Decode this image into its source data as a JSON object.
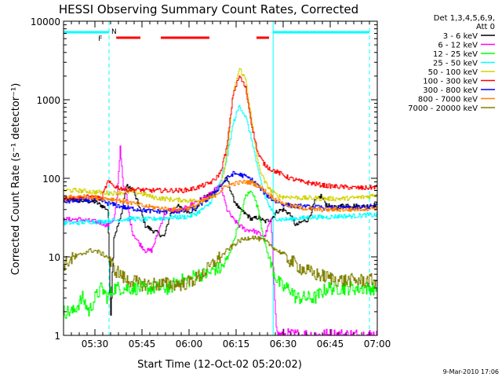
{
  "chart_data": {
    "type": "line",
    "title": "HESSI Observing Summary Count Rates, Corrected",
    "xlabel": "Start Time (12-Oct-02 05:20:02)",
    "ylabel": "Corrected Count Rate (s⁻¹ detector⁻¹)",
    "x_unit": "minutes since 05:20:02",
    "xlim": [
      0,
      100
    ],
    "ylim": [
      1,
      10000
    ],
    "yscale": "log",
    "x_ticks": [
      {
        "label": "05:30",
        "value": 10
      },
      {
        "label": "05:45",
        "value": 25
      },
      {
        "label": "06:00",
        "value": 40
      },
      {
        "label": "06:15",
        "value": 55
      },
      {
        "label": "06:30",
        "value": 70
      },
      {
        "label": "06:45",
        "value": 85
      },
      {
        "label": "07:00",
        "value": 100
      }
    ],
    "y_ticks": [
      {
        "label": "1",
        "value": 1
      },
      {
        "label": "10",
        "value": 10
      },
      {
        "label": "100",
        "value": 100
      },
      {
        "label": "1000",
        "value": 1000
      },
      {
        "label": "10000",
        "value": 10000
      }
    ],
    "legend": {
      "header": [
        "Det 1,3,4,5,6,9,",
        "Att 0"
      ],
      "placement": "right"
    },
    "flags": {
      "F_label": "F",
      "N_label": "N",
      "night_color": "#00ffff",
      "flare_color": "#ff0000",
      "night_segments": [
        [
          0,
          14.5
        ],
        [
          66.8,
          97.5
        ]
      ],
      "flare_segments": [
        [
          16.8,
          24.5
        ],
        [
          31,
          46.5
        ],
        [
          61.5,
          65.5
        ]
      ],
      "dashed_lines": [
        14.5,
        97.5
      ],
      "solid_lines": [
        0,
        66.8
      ]
    },
    "series": [
      {
        "name": "3 - 6 keV",
        "color": "#000000",
        "x": [
          0,
          5,
          10,
          12,
          14,
          15,
          16,
          18,
          20,
          22,
          24,
          26,
          28,
          30,
          32,
          34,
          36,
          38,
          40,
          42,
          44,
          46,
          48,
          50,
          52,
          54,
          56,
          58,
          60,
          62,
          64,
          66,
          68,
          70,
          72,
          74,
          76,
          78,
          80,
          82,
          84,
          86,
          88,
          90,
          92,
          94,
          96,
          98,
          100
        ],
        "y": [
          55,
          52,
          50,
          45,
          40,
          2,
          18,
          30,
          80,
          70,
          45,
          25,
          22,
          20,
          18,
          35,
          45,
          40,
          38,
          40,
          55,
          60,
          70,
          80,
          100,
          55,
          40,
          35,
          30,
          32,
          28,
          30,
          38,
          40,
          35,
          25,
          28,
          30,
          50,
          60,
          45,
          42,
          44,
          46,
          45,
          44,
          44,
          45,
          46
        ]
      },
      {
        "name": "6 - 12 keV",
        "color": "#ff00ff",
        "x": [
          0,
          5,
          10,
          12,
          14,
          15,
          16,
          17,
          18,
          19,
          20,
          21,
          22,
          24,
          26,
          28,
          30,
          32,
          34,
          36,
          38,
          40,
          42,
          44,
          46,
          48,
          50,
          52,
          54,
          56,
          58,
          60,
          62,
          64,
          66,
          67,
          68,
          70,
          72,
          74,
          76,
          78,
          80,
          85,
          90,
          95,
          100
        ],
        "y": [
          30,
          30,
          28,
          27,
          25,
          28,
          30,
          55,
          250,
          80,
          60,
          30,
          20,
          15,
          12,
          12,
          20,
          35,
          40,
          38,
          40,
          45,
          50,
          55,
          60,
          70,
          80,
          40,
          30,
          25,
          22,
          22,
          20,
          18,
          30,
          5,
          1,
          1,
          1,
          1,
          1,
          1,
          1,
          1,
          1,
          1,
          1
        ]
      },
      {
        "name": "12 - 25 keV",
        "color": "#00ff00",
        "x": [
          0,
          3,
          6,
          8,
          10,
          12,
          14,
          16,
          20,
          24,
          28,
          30,
          32,
          34,
          36,
          38,
          40,
          42,
          44,
          46,
          48,
          50,
          52,
          54,
          56,
          58,
          60,
          62,
          64,
          66,
          68,
          70,
          72,
          74,
          76,
          78,
          80,
          84,
          88,
          92,
          96,
          100
        ],
        "y": [
          2,
          2,
          3,
          2,
          3,
          4,
          3,
          4,
          4,
          4,
          4,
          4,
          4,
          4,
          5,
          5,
          5,
          6,
          6,
          6,
          7,
          7,
          9,
          15,
          30,
          60,
          70,
          40,
          15,
          8,
          5,
          4,
          4,
          3,
          3,
          3,
          3,
          4,
          4,
          4,
          4,
          4
        ]
      },
      {
        "name": "25 - 50 keV",
        "color": "#00ffff",
        "x": [
          0,
          4,
          8,
          12,
          14,
          16,
          18,
          20,
          22,
          24,
          26,
          28,
          30,
          32,
          34,
          36,
          38,
          40,
          42,
          44,
          46,
          48,
          50,
          52,
          54,
          56,
          58,
          60,
          62,
          64,
          66,
          68,
          70,
          72,
          74,
          76,
          78,
          80,
          84,
          88,
          92,
          96,
          100
        ],
        "y": [
          27,
          27,
          28,
          28,
          29,
          29,
          30,
          30,
          31,
          30,
          30,
          30,
          31,
          31,
          32,
          32,
          32,
          33,
          35,
          40,
          45,
          60,
          90,
          180,
          500,
          850,
          600,
          300,
          120,
          60,
          40,
          30,
          30,
          30,
          31,
          31,
          32,
          32,
          32,
          33,
          33,
          34,
          34
        ]
      },
      {
        "name": "50 - 100 keV",
        "color": "#d2d200",
        "x": [
          0,
          4,
          8,
          12,
          14,
          16,
          18,
          20,
          22,
          24,
          26,
          28,
          30,
          32,
          34,
          36,
          38,
          40,
          42,
          44,
          46,
          48,
          50,
          52,
          54,
          56,
          58,
          60,
          62,
          64,
          66,
          68,
          70,
          72,
          74,
          76,
          78,
          80,
          84,
          88,
          92,
          96,
          100
        ],
        "y": [
          70,
          70,
          68,
          66,
          65,
          65,
          66,
          66,
          68,
          65,
          62,
          58,
          56,
          55,
          54,
          53,
          53,
          52,
          52,
          54,
          56,
          60,
          75,
          200,
          1200,
          2500,
          1800,
          500,
          150,
          90,
          70,
          60,
          58,
          58,
          57,
          56,
          56,
          56,
          55,
          55,
          56,
          58,
          62
        ]
      },
      {
        "name": "100 - 300 keV",
        "color": "#ff0000",
        "x": [
          0,
          4,
          8,
          12,
          14,
          16,
          18,
          20,
          22,
          24,
          26,
          28,
          30,
          32,
          34,
          36,
          38,
          40,
          42,
          44,
          46,
          48,
          50,
          52,
          54,
          56,
          58,
          60,
          62,
          64,
          66,
          68,
          70,
          72,
          74,
          76,
          78,
          80,
          84,
          88,
          92,
          96,
          100
        ],
        "y": [
          55,
          56,
          58,
          55,
          90,
          80,
          75,
          72,
          72,
          72,
          70,
          70,
          70,
          70,
          70,
          70,
          70,
          72,
          75,
          80,
          85,
          95,
          120,
          250,
          1200,
          2000,
          1400,
          450,
          200,
          150,
          130,
          120,
          110,
          100,
          95,
          90,
          88,
          85,
          80,
          78,
          76,
          75,
          78
        ]
      },
      {
        "name": "300 - 800 keV",
        "color": "#0000ff",
        "x": [
          0,
          4,
          8,
          12,
          14,
          16,
          18,
          20,
          22,
          24,
          26,
          28,
          30,
          32,
          34,
          36,
          38,
          40,
          42,
          44,
          46,
          48,
          50,
          52,
          54,
          56,
          58,
          60,
          62,
          64,
          66,
          68,
          70,
          72,
          74,
          76,
          78,
          80,
          84,
          88,
          92,
          96,
          100
        ],
        "y": [
          50,
          52,
          53,
          52,
          48,
          46,
          44,
          42,
          41,
          40,
          39,
          38,
          38,
          38,
          38,
          38,
          38,
          40,
          42,
          48,
          55,
          65,
          80,
          100,
          115,
          112,
          105,
          95,
          80,
          65,
          55,
          50,
          47,
          45,
          44,
          44,
          43,
          43,
          42,
          42,
          42,
          43,
          45
        ]
      },
      {
        "name": "800 - 7000 keV",
        "color": "#ff8000",
        "x": [
          0,
          4,
          8,
          12,
          14,
          16,
          18,
          20,
          22,
          24,
          26,
          28,
          30,
          32,
          34,
          36,
          38,
          40,
          42,
          44,
          46,
          48,
          50,
          52,
          54,
          56,
          58,
          60,
          62,
          64,
          66,
          68,
          70,
          72,
          74,
          76,
          78,
          80,
          84,
          88,
          92,
          96,
          100
        ],
        "y": [
          58,
          58,
          58,
          56,
          55,
          54,
          52,
          50,
          48,
          46,
          44,
          43,
          42,
          41,
          40,
          40,
          40,
          42,
          45,
          50,
          55,
          60,
          70,
          80,
          85,
          88,
          90,
          88,
          80,
          70,
          60,
          52,
          48,
          45,
          43,
          42,
          41,
          40,
          40,
          40,
          40,
          41,
          42
        ]
      },
      {
        "name": "7000 - 20000 keV",
        "color": "#808000",
        "x": [
          0,
          2,
          4,
          6,
          8,
          10,
          12,
          14,
          16,
          18,
          20,
          22,
          24,
          26,
          28,
          30,
          32,
          34,
          36,
          38,
          40,
          42,
          44,
          46,
          48,
          50,
          52,
          54,
          56,
          58,
          60,
          62,
          64,
          66,
          68,
          70,
          72,
          74,
          76,
          78,
          80,
          84,
          88,
          92,
          96,
          100
        ],
        "y": [
          8,
          9,
          10,
          11,
          12,
          12,
          11,
          10,
          7,
          6,
          5,
          5,
          4.5,
          4.5,
          4.5,
          4.5,
          4.5,
          4.5,
          4.5,
          4.5,
          4.8,
          5.2,
          6,
          7,
          8.5,
          10,
          12,
          14,
          16,
          17,
          18,
          17,
          16,
          14,
          12,
          11,
          9,
          8,
          7,
          6.5,
          6,
          5.5,
          5,
          5,
          5,
          5
        ]
      }
    ]
  },
  "footer": {
    "timestamp": "9-Mar-2010 17:06"
  }
}
